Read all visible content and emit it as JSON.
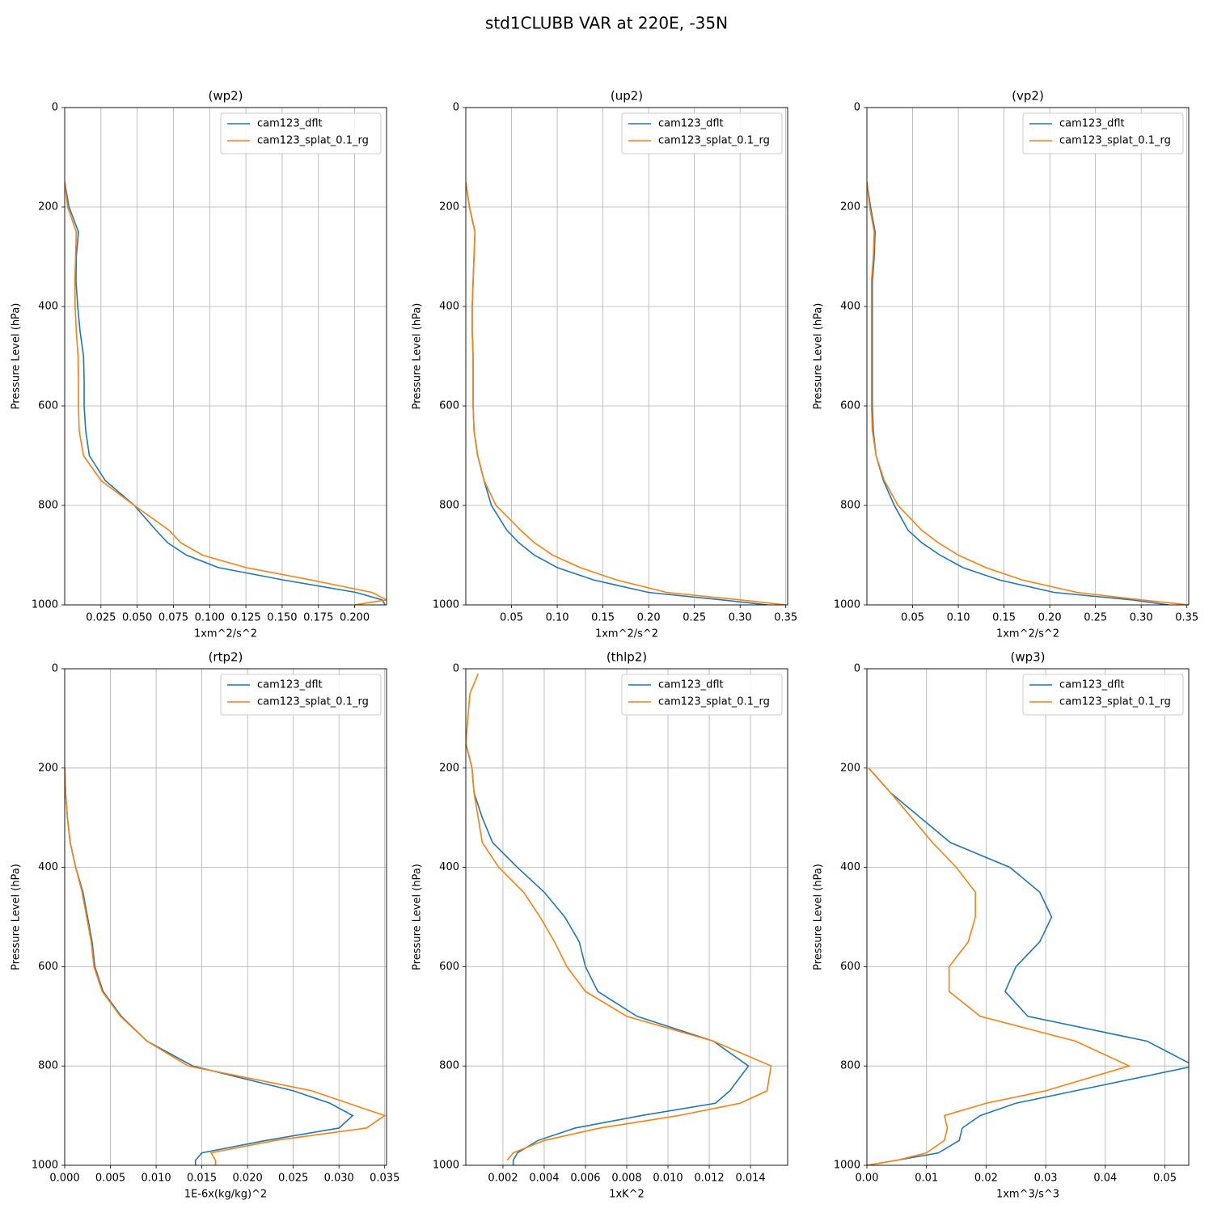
{
  "title": "std1CLUBB VAR at 220E, -35N",
  "chart_data": [
    {
      "type": "line",
      "title": "(wp2)",
      "xlabel": "1xm^2/s^2",
      "ylabel": "Pressure Level (hPa)",
      "y": [
        10,
        50,
        100,
        150,
        200,
        250,
        300,
        350,
        400,
        450,
        500,
        550,
        600,
        650,
        700,
        750,
        800,
        850,
        875,
        900,
        925,
        950,
        975,
        990,
        1000
      ],
      "series": [
        {
          "name": "cam123_dflt",
          "color": "#1f77b4",
          "values": [
            null,
            null,
            null,
            0,
            0.003,
            0.0095,
            0.008,
            0.0078,
            0.009,
            0.0106,
            0.013,
            0.0134,
            0.0134,
            0.0145,
            0.017,
            0.028,
            0.048,
            0.063,
            0.071,
            0.084,
            0.106,
            0.151,
            0.201,
            0.219,
            0.221
          ]
        },
        {
          "name": "cam123_splat_0.1_rg",
          "color": "#ff7f0e",
          "values": [
            null,
            null,
            null,
            0,
            0.002,
            0.008,
            0.0075,
            0.007,
            0.0072,
            0.008,
            0.0092,
            0.0095,
            0.0095,
            0.01,
            0.013,
            0.025,
            0.048,
            0.072,
            0.08,
            0.095,
            0.125,
            0.17,
            0.212,
            0.222,
            0.2
          ]
        }
      ],
      "xlim": [
        0,
        0.222
      ],
      "xticks": [
        0.025,
        {
          "value": 0.05,
          "label": "0.050"
        },
        0.075,
        {
          "value": 0.1,
          "label": "0.100"
        },
        0.125,
        {
          "value": 0.15,
          "label": "0.150"
        },
        0.175,
        {
          "value": 0.2,
          "label": "0.200"
        }
      ],
      "ylim": [
        1000,
        0
      ],
      "yticks": [
        0,
        200,
        400,
        600,
        800,
        1000
      ],
      "grid": true,
      "legend": "upper right"
    },
    {
      "type": "line",
      "title": "(up2)",
      "xlabel": "1xm^2/s^2",
      "ylabel": "Pressure Level (hPa)",
      "y": [
        10,
        50,
        100,
        150,
        200,
        250,
        300,
        350,
        400,
        450,
        500,
        550,
        600,
        650,
        700,
        750,
        800,
        850,
        875,
        900,
        925,
        950,
        975,
        990,
        1000
      ],
      "series": [
        {
          "name": "cam123_dflt",
          "color": "#1f77b4",
          "values": [
            null,
            null,
            null,
            0,
            0.004,
            0.01,
            0.009,
            0.008,
            0.007,
            0.007,
            0.008,
            0.008,
            0.008,
            0.009,
            0.013,
            0.02,
            0.028,
            0.045,
            0.058,
            0.075,
            0.1,
            0.14,
            0.2,
            0.28,
            0.33
          ]
        },
        {
          "name": "cam123_splat_0.1_rg",
          "color": "#ff7f0e",
          "values": [
            null,
            null,
            null,
            0,
            0.004,
            0.01,
            0.009,
            0.008,
            0.007,
            0.007,
            0.008,
            0.008,
            0.008,
            0.009,
            0.013,
            0.02,
            0.033,
            0.06,
            0.075,
            0.095,
            0.125,
            0.165,
            0.22,
            0.3,
            0.35
          ]
        }
      ],
      "xlim": [
        0,
        0.352
      ],
      "xticks": [
        0.05,
        {
          "value": 0.1,
          "label": "0.10"
        },
        0.15,
        {
          "value": 0.2,
          "label": "0.20"
        },
        0.25,
        {
          "value": 0.3,
          "label": "0.30"
        },
        0.35
      ],
      "ylim": [
        1000,
        0
      ],
      "yticks": [
        0,
        200,
        400,
        600,
        800,
        1000
      ],
      "grid": true,
      "legend": "upper right"
    },
    {
      "type": "line",
      "title": "(vp2)",
      "xlabel": "1xm^2/s^2",
      "ylabel": "Pressure Level (hPa)",
      "y": [
        10,
        50,
        100,
        150,
        200,
        250,
        300,
        350,
        400,
        450,
        500,
        550,
        600,
        650,
        700,
        750,
        800,
        850,
        875,
        900,
        925,
        950,
        975,
        990,
        1000
      ],
      "series": [
        {
          "name": "cam123_dflt",
          "color": "#1f77b4",
          "values": [
            null,
            null,
            null,
            0,
            0.004,
            0.009,
            0.008,
            0.006,
            0.006,
            0.006,
            0.006,
            0.006,
            0.006,
            0.007,
            0.01,
            0.018,
            0.03,
            0.045,
            0.06,
            0.08,
            0.105,
            0.145,
            0.205,
            0.29,
            0.33
          ]
        },
        {
          "name": "cam123_splat_0.1_rg",
          "color": "#ff7f0e",
          "values": [
            null,
            null,
            null,
            0,
            0.003,
            0.008,
            0.007,
            0.005,
            0.005,
            0.005,
            0.005,
            0.005,
            0.005,
            0.006,
            0.01,
            0.019,
            0.034,
            0.06,
            0.078,
            0.1,
            0.13,
            0.17,
            0.23,
            0.3,
            0.352
          ]
        }
      ],
      "xlim": [
        0,
        0.352
      ],
      "xticks": [
        0.05,
        {
          "value": 0.1,
          "label": "0.10"
        },
        0.15,
        {
          "value": 0.2,
          "label": "0.20"
        },
        0.25,
        {
          "value": 0.3,
          "label": "0.30"
        },
        0.35
      ],
      "ylim": [
        1000,
        0
      ],
      "yticks": [
        0,
        200,
        400,
        600,
        800,
        1000
      ],
      "grid": true,
      "legend": "upper right"
    },
    {
      "type": "line",
      "title": "(rtp2)",
      "xlabel": "1E-6x(kg/kg)^2",
      "ylabel": "Pressure Level (hPa)",
      "y": [
        10,
        50,
        100,
        150,
        200,
        250,
        300,
        350,
        400,
        450,
        500,
        550,
        600,
        650,
        700,
        750,
        800,
        850,
        875,
        900,
        925,
        950,
        975,
        990,
        1000
      ],
      "series": [
        {
          "name": "cam123_dflt",
          "color": "#1f77b4",
          "values": [
            null,
            null,
            null,
            null,
            0,
            0.0001,
            0.0003,
            0.0006,
            0.0012,
            0.002,
            0.0025,
            0.003,
            0.0033,
            0.0042,
            0.0062,
            0.009,
            0.014,
            0.025,
            0.029,
            0.0315,
            0.03,
            0.022,
            0.015,
            0.0143,
            0.0143
          ]
        },
        {
          "name": "cam123_splat_0.1_rg",
          "color": "#ff7f0e",
          "values": [
            null,
            null,
            null,
            null,
            0,
            0.0001,
            0.0003,
            0.0006,
            0.0012,
            0.0019,
            0.0024,
            0.0029,
            0.0032,
            0.0041,
            0.0061,
            0.009,
            0.0135,
            0.027,
            0.031,
            0.035,
            0.033,
            0.023,
            0.016,
            0.0165,
            0.0165
          ]
        }
      ],
      "xlim": [
        0,
        0.0352
      ],
      "xticks": [
        {
          "value": 0,
          "label": "0.000"
        },
        0.005,
        {
          "value": 0.01,
          "label": "0.010"
        },
        0.015,
        {
          "value": 0.02,
          "label": "0.020"
        },
        0.025,
        {
          "value": 0.03,
          "label": "0.030"
        },
        0.035
      ],
      "ylim": [
        1000,
        0
      ],
      "yticks": [
        0,
        200,
        400,
        600,
        800,
        1000
      ],
      "grid": true,
      "legend": "upper right"
    },
    {
      "type": "line",
      "title": "(thlp2)",
      "xlabel": "1xK^2",
      "ylabel": "Pressure Level (hPa)",
      "y": [
        10,
        50,
        100,
        150,
        200,
        250,
        300,
        350,
        400,
        450,
        500,
        550,
        600,
        650,
        700,
        750,
        800,
        850,
        875,
        900,
        925,
        950,
        975,
        990,
        1000
      ],
      "series": [
        {
          "name": "cam123_dflt",
          "color": "#1f77b4",
          "values": [
            null,
            null,
            null,
            0.0002,
            0.0005,
            0.0006,
            0.001,
            0.0015,
            0.0027,
            0.004,
            0.005,
            0.0057,
            0.006,
            0.0066,
            0.0085,
            0.0122,
            0.0139,
            0.013,
            0.0123,
            0.0087,
            0.0055,
            0.0037,
            0.0027,
            0.0025,
            0.0025
          ]
        },
        {
          "name": "cam123_splat_0.1_rg",
          "color": "#ff7f0e",
          "values": [
            0.0008,
            0.0004,
            0.0003,
            0.0002,
            0.0005,
            0.0006,
            0.0008,
            0.001,
            0.0018,
            0.003,
            0.0038,
            0.0045,
            0.0051,
            0.006,
            0.008,
            0.0122,
            0.015,
            0.0148,
            0.0135,
            0.0105,
            0.0067,
            0.004,
            0.0025,
            0.0022,
            null
          ]
        }
      ],
      "xlim": [
        0.0002,
        0.0158
      ],
      "xticks": [
        0.002,
        0.004,
        0.006,
        0.008,
        {
          "value": 0.01,
          "label": "0.010"
        },
        0.012,
        0.014
      ],
      "ylim": [
        1000,
        0
      ],
      "yticks": [
        0,
        200,
        400,
        600,
        800,
        1000
      ],
      "grid": true,
      "legend": "upper right"
    },
    {
      "type": "line",
      "title": "(wp3)",
      "xlabel": "1xm^3/s^3",
      "ylabel": "Pressure Level (hPa)",
      "y": [
        10,
        50,
        100,
        150,
        200,
        250,
        300,
        350,
        400,
        450,
        500,
        550,
        600,
        650,
        700,
        750,
        800,
        850,
        875,
        900,
        925,
        950,
        975,
        990,
        1000
      ],
      "series": [
        {
          "name": "cam123_dflt",
          "color": "#1f77b4",
          "values": [
            null,
            null,
            null,
            null,
            0.0003,
            0.004,
            0.009,
            0.014,
            0.024,
            0.029,
            0.031,
            0.029,
            0.025,
            0.0232,
            0.027,
            0.047,
            0.055,
            0.035,
            0.025,
            0.019,
            0.016,
            0.0155,
            0.012,
            0.005,
            0
          ]
        },
        {
          "name": "cam123_splat_0.1_rg",
          "color": "#ff7f0e",
          "values": [
            null,
            null,
            null,
            null,
            0.0003,
            0.004,
            0.0075,
            0.011,
            0.015,
            0.0182,
            0.0182,
            0.017,
            0.0138,
            0.0138,
            0.019,
            0.035,
            0.044,
            0.03,
            0.02,
            0.013,
            0.0135,
            0.013,
            0.01,
            0.005,
            0
          ]
        }
      ],
      "xlim": [
        0,
        0.054
      ],
      "xticks": [
        {
          "value": 0,
          "label": "0.00"
        },
        0.01,
        0.02,
        0.03,
        0.04,
        0.05
      ],
      "ylim": [
        1000,
        0
      ],
      "yticks": [
        0,
        200,
        400,
        600,
        800,
        1000
      ],
      "grid": true,
      "legend": "upper right"
    }
  ]
}
